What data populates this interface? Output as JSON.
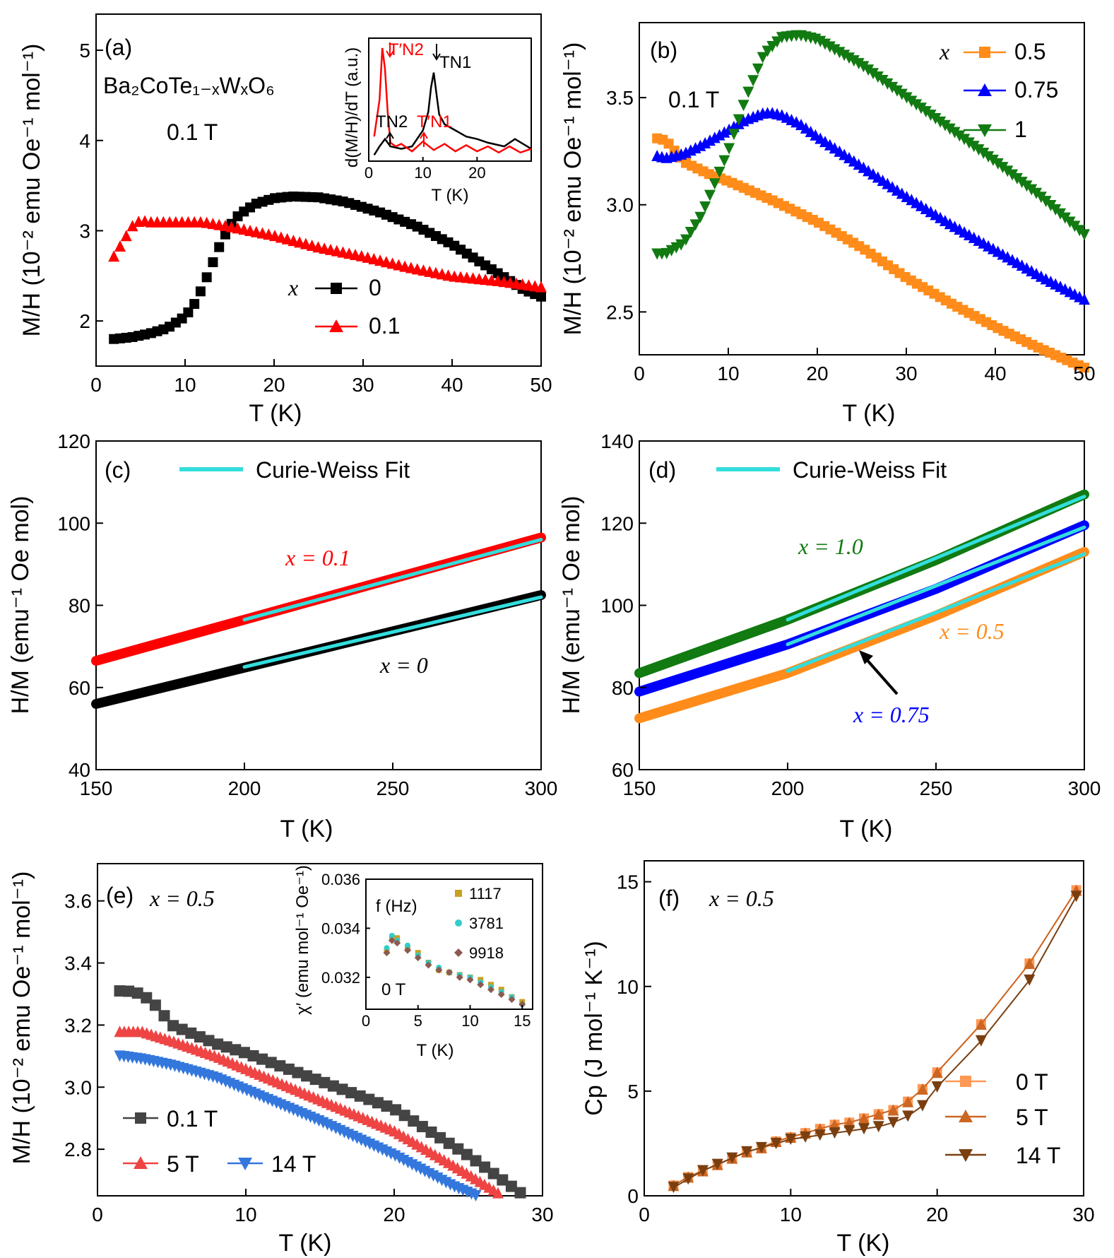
{
  "colors": {
    "x0": "#000000",
    "x01": "#ff0000",
    "x05": "#ff8c1a",
    "x075": "#0000ff",
    "x1": "#117a11",
    "fit": "#33dddd",
    "e01": "#444444",
    "e5": "#ee4444",
    "e14": "#3377dd",
    "f0": "#ff9955",
    "f5": "#cc6622",
    "f14": "#7a3f10",
    "acA": "#c8a020",
    "acB": "#33cccc",
    "acC": "#8b5a50"
  },
  "chart_data": [
    {
      "id": "a",
      "type": "scatter",
      "panel_label": "(a)",
      "compound": "Ba₂CoTe₁₋ₓWₓO₆",
      "field": "0.1 T",
      "xlabel": "T (K)",
      "ylabel": "M/H (10⁻² emu Oe⁻¹ mol⁻¹)",
      "xlim": [
        0,
        50
      ],
      "ylim": [
        1.5,
        5.4
      ],
      "xticks": [
        "0",
        "10",
        "20",
        "30",
        "40",
        "50"
      ],
      "yticks": [
        "2",
        "3",
        "4",
        "5"
      ],
      "legend_title": "x",
      "series": [
        {
          "name": "0",
          "x": [
            2,
            4,
            6,
            8,
            10,
            11,
            12,
            13,
            14,
            15,
            16,
            17,
            18,
            20,
            22,
            25,
            28,
            32,
            36,
            40,
            44,
            48,
            50
          ],
          "y": [
            1.8,
            1.82,
            1.86,
            1.92,
            2.05,
            2.18,
            2.38,
            2.62,
            2.86,
            3.05,
            3.17,
            3.24,
            3.3,
            3.36,
            3.38,
            3.37,
            3.32,
            3.2,
            3.05,
            2.85,
            2.6,
            2.35,
            2.27
          ]
        },
        {
          "name": "0.1",
          "x": [
            2,
            3,
            4,
            5,
            6,
            8,
            10,
            12,
            15,
            20,
            25,
            30,
            35,
            40,
            45,
            50
          ],
          "y": [
            2.72,
            2.88,
            3.05,
            3.12,
            3.1,
            3.1,
            3.1,
            3.1,
            3.05,
            2.95,
            2.82,
            2.72,
            2.6,
            2.5,
            2.45,
            2.38
          ]
        }
      ]
    },
    {
      "id": "a-inset",
      "type": "line",
      "xlabel": "T (K)",
      "ylabel": "d(M/H)/dT (a.u.)",
      "xlim": [
        0,
        30
      ],
      "xticks": [
        "0",
        "10",
        "20"
      ],
      "annotations": [
        "T′N2",
        "TN1",
        "TN2",
        "T′N1"
      ],
      "series": [
        {
          "name": "0",
          "x": [
            1,
            2,
            3,
            4,
            6,
            8,
            10,
            11,
            11.5,
            12,
            12.5,
            13,
            14,
            16,
            18,
            20,
            22,
            25,
            27,
            30
          ],
          "y": [
            0.05,
            0.12,
            0.18,
            0.12,
            0.1,
            0.12,
            0.25,
            0.4,
            0.6,
            0.72,
            0.55,
            0.38,
            0.3,
            0.25,
            0.2,
            0.18,
            0.15,
            0.12,
            0.18,
            0.1
          ]
        },
        {
          "name": "0.1",
          "x": [
            1,
            2,
            2.5,
            3,
            3.5,
            4,
            5,
            6,
            8,
            10,
            12,
            14,
            16,
            18,
            20,
            22,
            24,
            26,
            28,
            30
          ],
          "y": [
            0.2,
            0.5,
            0.92,
            0.75,
            0.4,
            0.15,
            0.12,
            0.14,
            0.08,
            0.16,
            0.09,
            0.14,
            0.08,
            0.13,
            0.08,
            0.12,
            0.07,
            0.12,
            0.07,
            0.1
          ]
        }
      ]
    },
    {
      "id": "b",
      "type": "scatter",
      "panel_label": "(b)",
      "field": "0.1 T",
      "xlabel": "T (K)",
      "ylabel": "M/H (10⁻² emu Oe⁻¹ mol⁻¹)",
      "xlim": [
        0,
        50
      ],
      "ylim": [
        2.3,
        3.85
      ],
      "xticks": [
        "0",
        "10",
        "20",
        "30",
        "40",
        "50"
      ],
      "yticks": [
        "2.5",
        "3.0",
        "3.5"
      ],
      "legend_title": "x",
      "series": [
        {
          "name": "0.5",
          "x": [
            2,
            3,
            5,
            8,
            10,
            15,
            20,
            25,
            30,
            35,
            40,
            45,
            50
          ],
          "y": [
            3.31,
            3.3,
            3.2,
            3.14,
            3.11,
            3.02,
            2.92,
            2.8,
            2.66,
            2.54,
            2.43,
            2.33,
            2.24
          ]
        },
        {
          "name": "0.75",
          "x": [
            2,
            3,
            5,
            7,
            10,
            12,
            14,
            15,
            16,
            18,
            20,
            25,
            30,
            35,
            40,
            45,
            50
          ],
          "y": [
            3.23,
            3.22,
            3.24,
            3.28,
            3.35,
            3.4,
            3.43,
            3.43,
            3.42,
            3.38,
            3.32,
            3.18,
            3.04,
            2.91,
            2.79,
            2.67,
            2.56
          ]
        },
        {
          "name": "1",
          "x": [
            2,
            3,
            5,
            7,
            10,
            12,
            14,
            16,
            18,
            20,
            25,
            30,
            35,
            40,
            45,
            50
          ],
          "y": [
            2.77,
            2.77,
            2.82,
            2.95,
            3.25,
            3.5,
            3.7,
            3.78,
            3.79,
            3.77,
            3.65,
            3.5,
            3.35,
            3.2,
            3.04,
            2.86
          ]
        }
      ]
    },
    {
      "id": "c",
      "type": "line",
      "panel_label": "(c)",
      "xlabel": "T (K)",
      "ylabel": "H/M (emu⁻¹ Oe mol)",
      "xlim": [
        150,
        300
      ],
      "ylim": [
        40,
        120
      ],
      "xticks": [
        "150",
        "200",
        "250",
        "300"
      ],
      "yticks": [
        "40",
        "60",
        "80",
        "100",
        "120"
      ],
      "legend": [
        "Curie-Weiss Fit"
      ],
      "labels": {
        "x01": "x = 0.1",
        "x0": "x = 0"
      },
      "series": [
        {
          "name": "x = 0.1",
          "x": [
            150,
            300
          ],
          "y": [
            66.5,
            96.5
          ]
        },
        {
          "name": "x = 0",
          "x": [
            150,
            300
          ],
          "y": [
            56,
            82.5
          ]
        },
        {
          "name": "fit x = 0.1",
          "x": [
            200,
            300
          ],
          "y": [
            76.5,
            96
          ]
        },
        {
          "name": "fit x = 0",
          "x": [
            200,
            300
          ],
          "y": [
            65,
            82
          ]
        }
      ]
    },
    {
      "id": "d",
      "type": "line",
      "panel_label": "(d)",
      "xlabel": "T (K)",
      "ylabel": "H/M (emu⁻¹ Oe mol)",
      "xlim": [
        150,
        300
      ],
      "ylim": [
        60,
        140
      ],
      "xticks": [
        "150",
        "200",
        "250",
        "300"
      ],
      "yticks": [
        "60",
        "80",
        "100",
        "120",
        "140"
      ],
      "legend": [
        "Curie-Weiss Fit"
      ],
      "labels": {
        "x1": "x = 1.0",
        "x05": "x = 0.5",
        "x075": "x = 0.75"
      },
      "series": [
        {
          "name": "x = 1.0",
          "x": [
            150,
            200,
            250,
            300
          ],
          "y": [
            83.5,
            96.5,
            111,
            127
          ]
        },
        {
          "name": "x = 0.75",
          "x": [
            150,
            200,
            250,
            300
          ],
          "y": [
            79,
            90.5,
            104,
            119.5
          ]
        },
        {
          "name": "x = 0.5",
          "x": [
            150,
            200,
            250,
            300
          ],
          "y": [
            72.5,
            83.5,
            97.5,
            113
          ]
        },
        {
          "name": "fit x = 1.0",
          "x": [
            200,
            300
          ],
          "y": [
            96.5,
            126.5
          ]
        },
        {
          "name": "fit x = 0.75",
          "x": [
            200,
            300
          ],
          "y": [
            90.5,
            119
          ]
        },
        {
          "name": "fit x = 0.5",
          "x": [
            200,
            300
          ],
          "y": [
            84,
            112.5
          ]
        }
      ]
    },
    {
      "id": "e",
      "type": "scatter",
      "panel_label": "(e)",
      "composition": "x = 0.5",
      "xlabel": "T (K)",
      "ylabel": "M/H (10⁻² emu Oe⁻¹ mol⁻¹)",
      "xlim": [
        0,
        30
      ],
      "ylim": [
        2.65,
        3.72
      ],
      "xticks": [
        "0",
        "10",
        "20",
        "30"
      ],
      "yticks": [
        "2.8",
        "3.0",
        "3.2",
        "3.4",
        "3.6"
      ],
      "series": [
        {
          "name": "0.1 T",
          "x": [
            1.5,
            2,
            3,
            4,
            5,
            8,
            10,
            15,
            20,
            25,
            28.5
          ],
          "y": [
            3.31,
            3.31,
            3.3,
            3.26,
            3.2,
            3.14,
            3.11,
            3.02,
            2.93,
            2.78,
            2.66
          ]
        },
        {
          "name": "5 T",
          "x": [
            1.5,
            3,
            5,
            8,
            10,
            15,
            20,
            25,
            27
          ],
          "y": [
            3.18,
            3.18,
            3.15,
            3.1,
            3.06,
            2.96,
            2.86,
            2.72,
            2.66
          ]
        },
        {
          "name": "14 T",
          "x": [
            1.5,
            3,
            5,
            8,
            10,
            15,
            20,
            24,
            25.5
          ],
          "y": [
            3.1,
            3.09,
            3.07,
            3.03,
            2.99,
            2.89,
            2.78,
            2.68,
            2.65
          ]
        }
      ]
    },
    {
      "id": "e-inset",
      "type": "scatter",
      "xlabel": "T (K)",
      "ylabel": "χ′ (emu mol⁻¹ Oe⁻¹)",
      "legend_title": "f (Hz)",
      "field": "0 T",
      "xlim": [
        0,
        16
      ],
      "ylim": [
        0.0307,
        0.036
      ],
      "xticks": [
        "0",
        "5",
        "10",
        "15"
      ],
      "yticks": [
        "0.032",
        "0.034",
        "0.036"
      ],
      "series": [
        {
          "name": "1117",
          "x": [
            2,
            2.5,
            3,
            4,
            5,
            6,
            7,
            8,
            9,
            10,
            11,
            12,
            13,
            14,
            15
          ],
          "y": [
            0.0331,
            0.0336,
            0.0336,
            0.0332,
            0.033,
            0.0326,
            0.0323,
            0.0322,
            0.0321,
            0.032,
            0.0319,
            0.0317,
            0.0315,
            0.0312,
            0.031
          ]
        },
        {
          "name": "3781",
          "x": [
            2,
            2.5,
            3,
            4,
            5,
            6,
            7,
            8,
            9,
            10,
            11,
            12,
            13,
            14,
            15
          ],
          "y": [
            0.0332,
            0.0337,
            0.0335,
            0.0333,
            0.0329,
            0.0326,
            0.0324,
            0.0322,
            0.0321,
            0.032,
            0.0318,
            0.0316,
            0.0314,
            0.0312,
            0.0309
          ]
        },
        {
          "name": "9918",
          "x": [
            2,
            2.5,
            3,
            4,
            5,
            6,
            7,
            8,
            9,
            10,
            11,
            12,
            13,
            14,
            15
          ],
          "y": [
            0.033,
            0.0335,
            0.0334,
            0.0331,
            0.0328,
            0.0325,
            0.0323,
            0.0322,
            0.032,
            0.0319,
            0.0317,
            0.0315,
            0.0313,
            0.0311,
            0.0309
          ]
        }
      ]
    },
    {
      "id": "f",
      "type": "line",
      "panel_label": "(f)",
      "composition": "x = 0.5",
      "xlabel": "T (K)",
      "ylabel": "Cp (J mol⁻¹ K⁻¹)",
      "xlim": [
        0,
        30
      ],
      "ylim": [
        0,
        16
      ],
      "xticks": [
        "0",
        "10",
        "20",
        "30"
      ],
      "yticks": [
        "0",
        "5",
        "10",
        "15"
      ],
      "series": [
        {
          "name": "0 T",
          "x": [
            2,
            3,
            4,
            5,
            6,
            7,
            8,
            9,
            10,
            11,
            12,
            13,
            14,
            15,
            16,
            17,
            18,
            19,
            20,
            23,
            26.3,
            29.5
          ],
          "y": [
            0.5,
            0.9,
            1.2,
            1.5,
            1.8,
            2.1,
            2.3,
            2.6,
            2.8,
            3.0,
            3.2,
            3.4,
            3.5,
            3.7,
            3.9,
            4.1,
            4.5,
            5.1,
            5.9,
            8.2,
            11.1,
            14.6
          ]
        },
        {
          "name": "5 T",
          "x": [
            2,
            3,
            4,
            5,
            6,
            7,
            8,
            9,
            10,
            11,
            12,
            13,
            14,
            15,
            16,
            17,
            18,
            19,
            20,
            23,
            26.3,
            29.5
          ],
          "y": [
            0.5,
            0.9,
            1.2,
            1.5,
            1.8,
            2.1,
            2.3,
            2.6,
            2.8,
            3.0,
            3.2,
            3.4,
            3.5,
            3.7,
            3.9,
            4.1,
            4.5,
            5.1,
            5.9,
            8.2,
            11.1,
            14.6
          ]
        },
        {
          "name": "14 T",
          "x": [
            2,
            3,
            4,
            5,
            6,
            7,
            8,
            9,
            10,
            11,
            12,
            13,
            14,
            15,
            16,
            17,
            18,
            19,
            20,
            23,
            26.3,
            29.5
          ],
          "y": [
            0.4,
            0.8,
            1.2,
            1.5,
            1.8,
            2.1,
            2.3,
            2.5,
            2.7,
            2.8,
            2.9,
            3.0,
            3.1,
            3.2,
            3.3,
            3.5,
            3.8,
            4.3,
            5.2,
            7.4,
            10.3,
            14.3
          ]
        }
      ]
    }
  ]
}
